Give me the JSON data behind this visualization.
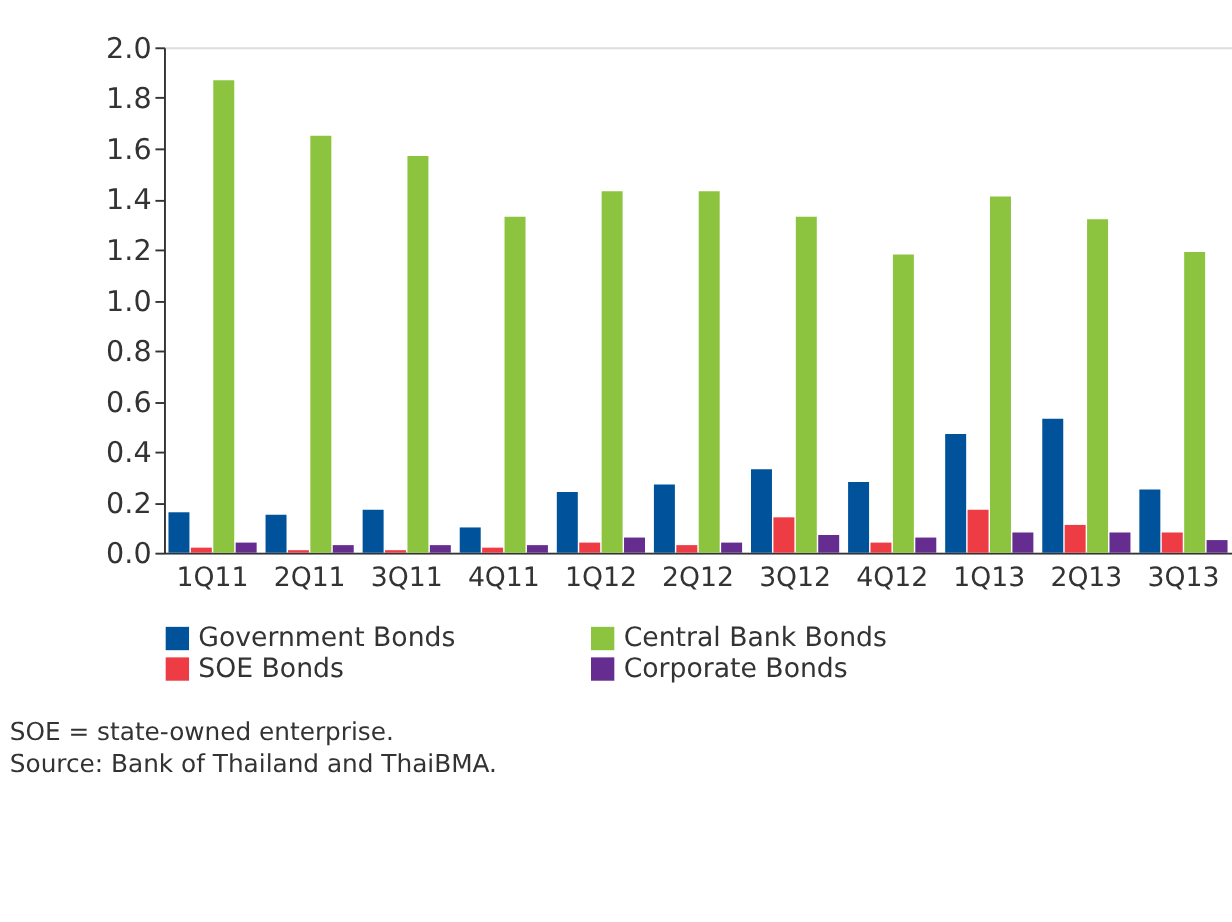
{
  "chart_data": {
    "type": "bar",
    "categories": [
      "1Q11",
      "2Q11",
      "3Q11",
      "4Q11",
      "1Q12",
      "2Q12",
      "3Q12",
      "4Q12",
      "1Q13",
      "2Q13",
      "3Q13"
    ],
    "series": [
      {
        "name": "Government Bonds",
        "color": "#00539b",
        "values": [
          0.16,
          0.15,
          0.17,
          0.1,
          0.24,
          0.27,
          0.33,
          0.28,
          0.47,
          0.53,
          0.25
        ]
      },
      {
        "name": "SOE Bonds",
        "color": "#ee3c45",
        "values": [
          0.02,
          0.01,
          0.01,
          0.02,
          0.04,
          0.03,
          0.14,
          0.04,
          0.17,
          0.11,
          0.08
        ]
      },
      {
        "name": "Central Bank Bonds",
        "color": "#8cc43f",
        "values": [
          1.87,
          1.65,
          1.57,
          1.33,
          1.43,
          1.43,
          1.33,
          1.18,
          1.41,
          1.32,
          1.19
        ]
      },
      {
        "name": "Corporate Bonds",
        "color": "#662d91",
        "values": [
          0.04,
          0.03,
          0.03,
          0.03,
          0.06,
          0.04,
          0.07,
          0.06,
          0.08,
          0.08,
          0.05
        ]
      }
    ],
    "ylim": [
      0,
      2.0
    ],
    "yticks": [
      {
        "value": 0,
        "label": "0.0"
      },
      {
        "value": 0.2,
        "label": "0.2"
      },
      {
        "value": 0.4,
        "label": "0.4"
      },
      {
        "value": 0.6,
        "label": "0.6"
      },
      {
        "value": 0.8,
        "label": "0.8"
      },
      {
        "value": 1.0,
        "label": "1.0"
      },
      {
        "value": 1.2,
        "label": "1.2"
      },
      {
        "value": 1.4,
        "label": "1.4"
      },
      {
        "value": 1.6,
        "label": "1.6"
      },
      {
        "value": 1.8,
        "label": "1.8"
      },
      {
        "value": 2.0,
        "label": "2.0"
      }
    ],
    "grid": false,
    "legend": "bottom",
    "annotations": [
      "SOE = state-owned enterprise.",
      "Source: Bank of Thailand and ThaiBMA."
    ]
  }
}
